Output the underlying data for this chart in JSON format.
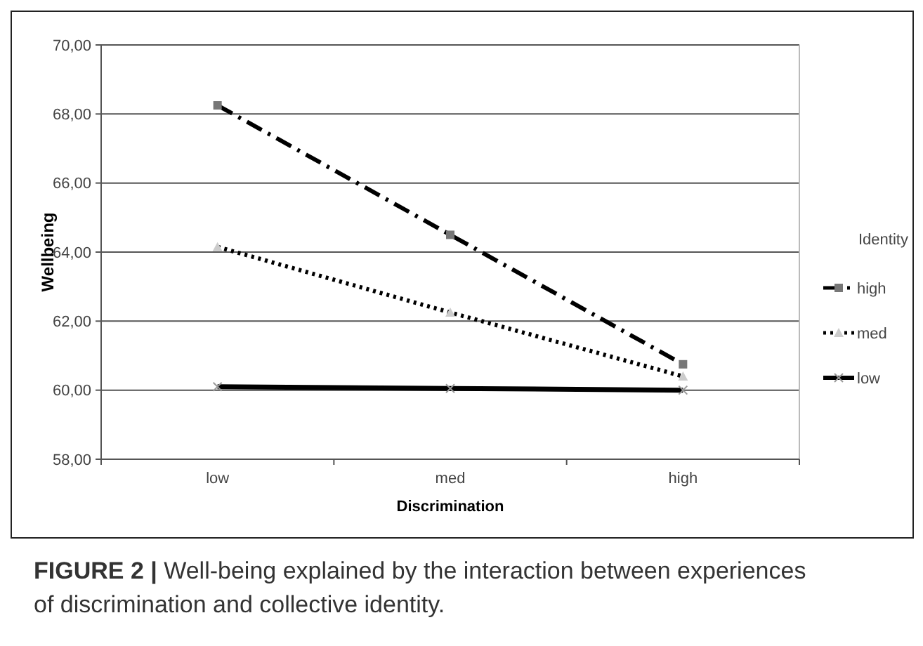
{
  "chart_data": {
    "type": "line",
    "xlabel": "Discrimination",
    "ylabel": "Wellbeing",
    "legend_title": "Identity",
    "categories": [
      "low",
      "med",
      "high"
    ],
    "series": [
      {
        "name": "high",
        "color": "#000000",
        "values": [
          68.25,
          64.5,
          60.75
        ],
        "marker": "square",
        "line_style": "dashed"
      },
      {
        "name": "med",
        "color": "#000000",
        "values": [
          64.15,
          62.25,
          60.4
        ],
        "marker": "triangle",
        "line_style": "dotted"
      },
      {
        "name": "low",
        "color": "#000000",
        "values": [
          60.1,
          60.05,
          60.0
        ],
        "marker": "cross",
        "line_style": "solid"
      }
    ],
    "ylim": [
      58,
      70
    ],
    "yticks": [
      {
        "value": 58,
        "label": "58,00"
      },
      {
        "value": 60,
        "label": "60,00"
      },
      {
        "value": 62,
        "label": "62,00"
      },
      {
        "value": 64,
        "label": "64,00"
      },
      {
        "value": 66,
        "label": "66,00"
      },
      {
        "value": 68,
        "label": "68,00"
      },
      {
        "value": 70,
        "label": "70,00"
      }
    ],
    "grid": "y",
    "legend": "right",
    "annotations": [
      "FIGURE 2 | Well-being explained by the interaction between experiences of discrimination and collective identity."
    ]
  }
}
